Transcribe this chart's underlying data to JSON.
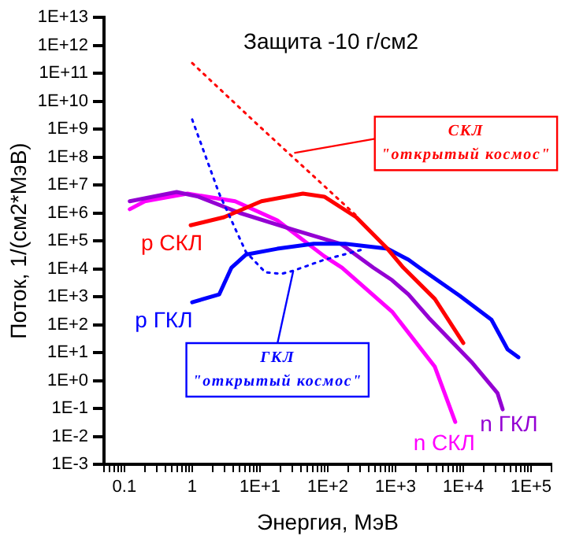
{
  "chart_data": {
    "type": "line",
    "title": "Защита -10 г/см2",
    "xlabel": "Энергия, МэВ",
    "ylabel": "Поток, 1/(см2*МэВ)",
    "log": "xy",
    "grid": false,
    "legend": false,
    "marker": "none",
    "xlim": [
      0.05,
      200000
    ],
    "ylim": [
      0.001,
      10000000000000
    ],
    "xticks": [
      {
        "value": 0.05,
        "label": null
      },
      {
        "value": 0.06,
        "label": null
      },
      {
        "value": 0.07,
        "label": null
      },
      {
        "value": 0.08,
        "label": null
      },
      {
        "value": 0.09,
        "label": null
      },
      {
        "value": 0.1,
        "label": "0.1"
      },
      {
        "value": 0.2,
        "label": null
      },
      {
        "value": 0.3,
        "label": null
      },
      {
        "value": 0.4,
        "label": null
      },
      {
        "value": 0.5,
        "label": null
      },
      {
        "value": 0.6,
        "label": null
      },
      {
        "value": 0.7,
        "label": null
      },
      {
        "value": 0.8,
        "label": null
      },
      {
        "value": 0.9,
        "label": null
      },
      {
        "value": 1,
        "label": "1"
      },
      {
        "value": 2,
        "label": null
      },
      {
        "value": 3,
        "label": null
      },
      {
        "value": 4,
        "label": null
      },
      {
        "value": 5,
        "label": null
      },
      {
        "value": 6,
        "label": null
      },
      {
        "value": 7,
        "label": null
      },
      {
        "value": 8,
        "label": null
      },
      {
        "value": 9,
        "label": null
      },
      {
        "value": 10,
        "label": "1E+1"
      },
      {
        "value": 20,
        "label": null
      },
      {
        "value": 30,
        "label": null
      },
      {
        "value": 40,
        "label": null
      },
      {
        "value": 50,
        "label": null
      },
      {
        "value": 60,
        "label": null
      },
      {
        "value": 70,
        "label": null
      },
      {
        "value": 80,
        "label": null
      },
      {
        "value": 90,
        "label": null
      },
      {
        "value": 100,
        "label": "1E+2"
      },
      {
        "value": 200,
        "label": null
      },
      {
        "value": 300,
        "label": null
      },
      {
        "value": 400,
        "label": null
      },
      {
        "value": 500,
        "label": null
      },
      {
        "value": 600,
        "label": null
      },
      {
        "value": 700,
        "label": null
      },
      {
        "value": 800,
        "label": null
      },
      {
        "value": 900,
        "label": null
      },
      {
        "value": 1000,
        "label": "1E+3"
      },
      {
        "value": 2000,
        "label": null
      },
      {
        "value": 3000,
        "label": null
      },
      {
        "value": 4000,
        "label": null
      },
      {
        "value": 5000,
        "label": null
      },
      {
        "value": 6000,
        "label": null
      },
      {
        "value": 7000,
        "label": null
      },
      {
        "value": 8000,
        "label": null
      },
      {
        "value": 9000,
        "label": null
      },
      {
        "value": 10000,
        "label": "1E+4"
      },
      {
        "value": 20000,
        "label": null
      },
      {
        "value": 30000,
        "label": null
      },
      {
        "value": 40000,
        "label": null
      },
      {
        "value": 50000,
        "label": null
      },
      {
        "value": 60000,
        "label": null
      },
      {
        "value": 70000,
        "label": null
      },
      {
        "value": 80000,
        "label": null
      },
      {
        "value": 90000,
        "label": null
      },
      {
        "value": 100000,
        "label": "1E+5"
      },
      {
        "value": 200000,
        "label": null
      }
    ],
    "yticks": [
      {
        "value": 0.001,
        "label": "1E-3"
      },
      {
        "value": 0.01,
        "label": "1E-2"
      },
      {
        "value": 0.1,
        "label": "1E-1"
      },
      {
        "value": 1,
        "label": "1E+0"
      },
      {
        "value": 10,
        "label": "1E+1"
      },
      {
        "value": 100,
        "label": "1E+2"
      },
      {
        "value": 1000,
        "label": "1E+3"
      },
      {
        "value": 10000,
        "label": "1E+4"
      },
      {
        "value": 100000,
        "label": "1E+5"
      },
      {
        "value": 1000000,
        "label": "1E+6"
      },
      {
        "value": 10000000,
        "label": "1E+7"
      },
      {
        "value": 100000000,
        "label": "1E+8"
      },
      {
        "value": 1000000000,
        "label": "1E+9"
      },
      {
        "value": 10000000000,
        "label": "1E+10"
      },
      {
        "value": 100000000000,
        "label": "1E+11"
      },
      {
        "value": 1000000000000,
        "label": "1E+12"
      },
      {
        "value": 10000000000000,
        "label": "1E+13"
      }
    ],
    "series": [
      {
        "color": "#ff0000",
        "line_style": "dotted",
        "x": [
          1,
          10,
          100,
          263
        ],
        "values": [
          230000000000,
          1200000000,
          7000000,
          800000
        ]
      },
      {
        "color": "#0000ff",
        "line_style": "dotted",
        "x": [
          1,
          2.5,
          6.2,
          12,
          21,
          31,
          89,
          360
        ],
        "values": [
          2200000000,
          4900000,
          40000,
          7400,
          6600,
          8500,
          21000,
          52000
        ]
      },
      {
        "name": "p СКЛ",
        "color": "#ff0000",
        "line_style": "solid",
        "x": [
          0.95,
          2.95,
          10.5,
          43,
          89,
          263,
          760,
          1300,
          3800,
          10000
        ],
        "values": [
          360000,
          700000,
          2600000,
          4900000,
          3800000,
          700000,
          52000,
          11000,
          830,
          22
        ]
      },
      {
        "name": "p ГКЛ",
        "color": "#0000ff",
        "line_style": "solid",
        "x": [
          1,
          2.5,
          3.8,
          6.2,
          18,
          62,
          180,
          760,
          1550,
          2240,
          8900,
          26000,
          45000,
          65000
        ],
        "values": [
          630,
          1200,
          11000,
          32000,
          52000,
          78000,
          78000,
          52000,
          21000,
          11000,
          1070,
          150,
          13,
          6.8
        ]
      },
      {
        "name": "n ГКЛ",
        "color": "#9400d3",
        "line_style": "solid",
        "x": [
          0.12,
          0.59,
          1.23,
          5,
          31,
          155,
          468,
          890,
          1550,
          3100,
          13200,
          32000,
          38000
        ],
        "values": [
          2600000,
          5600000,
          3800000,
          1000000,
          250000,
          78000,
          11000,
          3900,
          1200,
          174,
          4.6,
          0.35,
          0.093
        ]
      },
      {
        "name": "n СКЛ",
        "color": "#ff00ff",
        "line_style": "solid",
        "x": [
          0.12,
          0.2,
          0.85,
          4.3,
          18,
          89,
          162,
          890,
          3800,
          7600
        ],
        "values": [
          1350000,
          2600000,
          4900000,
          2600000,
          540000,
          28000,
          11000,
          290,
          3.1,
          0.033
        ]
      }
    ],
    "annotations": [
      {
        "text": "СКЛ\n\"открытый космос\"",
        "x": 32,
        "y": 140000000
      },
      {
        "text": "ГКЛ\n\"открытый космос\"",
        "x": 31,
        "y": 8500
      }
    ]
  }
}
